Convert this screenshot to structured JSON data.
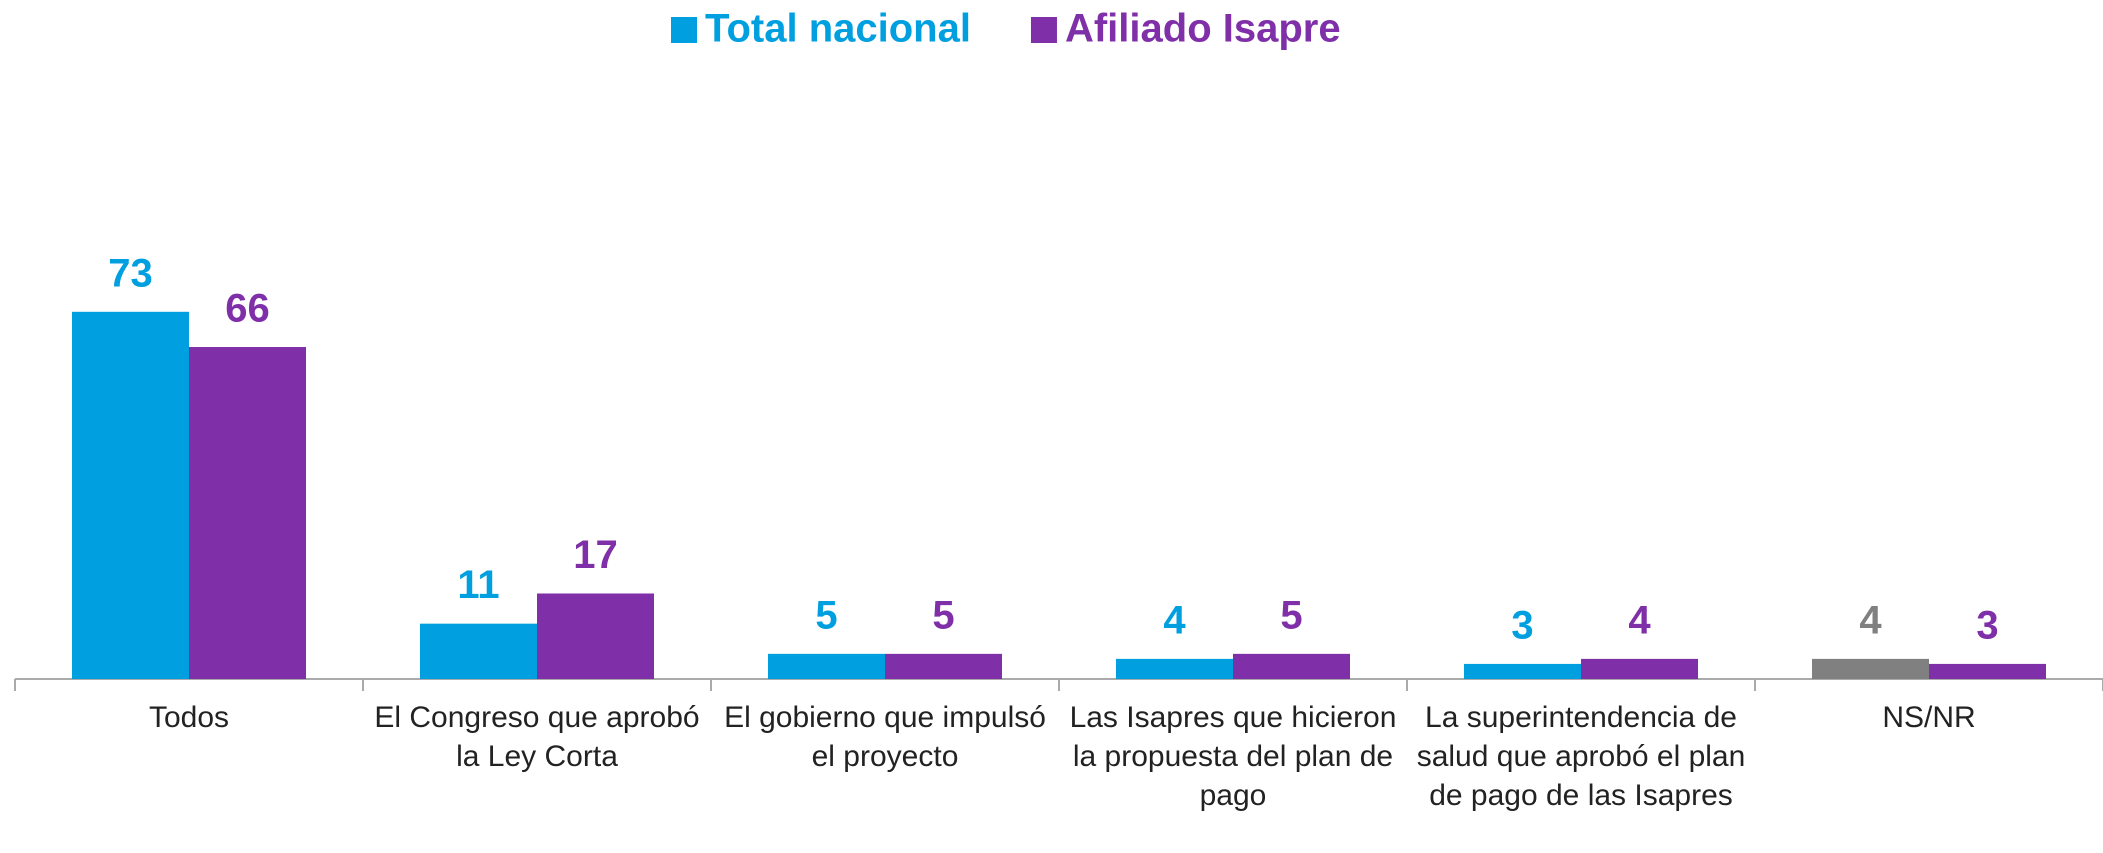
{
  "chart_data": {
    "type": "bar",
    "categories": [
      "Todos",
      "El Congreso que aprobó la Ley Corta",
      "El gobierno que impulsó el proyecto",
      "Las Isapres que hicieron la propuesta del plan de pago",
      "La superintendencia de salud que aprobó el plan de pago de las Isapres",
      "NS/NR"
    ],
    "series": [
      {
        "name": "Total nacional",
        "color": "#009fe0",
        "colors": [
          "#009fe0",
          "#009fe0",
          "#009fe0",
          "#009fe0",
          "#009fe0",
          "#808080"
        ],
        "values": [
          73,
          11,
          5,
          4,
          3,
          4
        ]
      },
      {
        "name": "Afiliado Isapre",
        "color": "#7f2fa8",
        "values": [
          66,
          17,
          5,
          5,
          4,
          3
        ]
      }
    ],
    "legend": "top"
  }
}
